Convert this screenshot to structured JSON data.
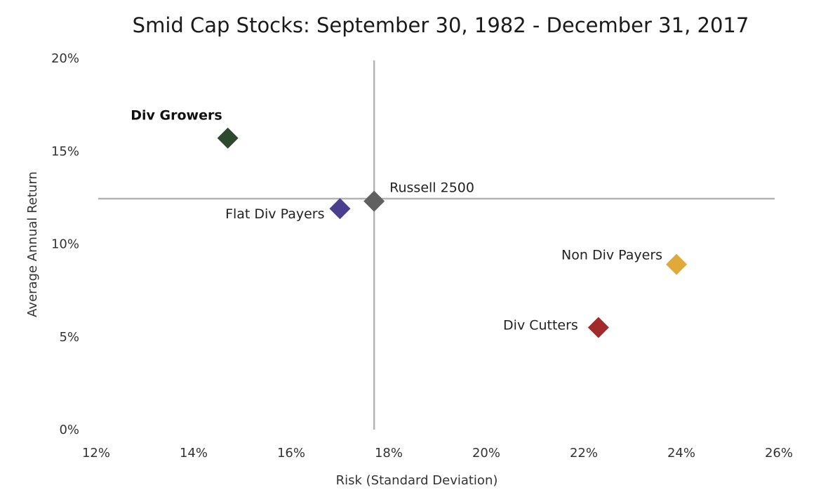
{
  "chart_data": {
    "type": "scatter",
    "title": "Smid Cap Stocks: September 30, 1982 - December 31, 2017",
    "xlabel": "Risk (Standard Deviation)",
    "ylabel": "Average Annual Return",
    "xlim": [
      12,
      26
    ],
    "ylim": [
      0,
      20
    ],
    "x_ticks": [
      12,
      14,
      16,
      18,
      20,
      22,
      24,
      26
    ],
    "y_ticks": [
      0,
      5,
      10,
      15,
      20
    ],
    "x_tick_labels": [
      "12%",
      "14%",
      "16%",
      "18%",
      "20%",
      "22%",
      "24%",
      "26%"
    ],
    "y_tick_labels": [
      "0%",
      "5%",
      "10%",
      "15%",
      "20%"
    ],
    "grid": false,
    "legend": "none",
    "reference_lines": {
      "x": 17.7,
      "y": 12.5
    },
    "points": [
      {
        "label": "Div Growers",
        "x": 14.7,
        "y": 15.7,
        "color": "#2e4a2e",
        "bold": true
      },
      {
        "label": "Flat Div Payers",
        "x": 17.0,
        "y": 11.9,
        "color": "#4a3f8f",
        "bold": false
      },
      {
        "label": "Russell 2500",
        "x": 17.7,
        "y": 12.3,
        "color": "#5f605f",
        "bold": false
      },
      {
        "label": "Non Div Payers",
        "x": 23.9,
        "y": 8.9,
        "color": "#e0a93a",
        "bold": false
      },
      {
        "label": "Div Cutters",
        "x": 22.3,
        "y": 5.5,
        "color": "#a12a2a",
        "bold": false
      }
    ]
  }
}
